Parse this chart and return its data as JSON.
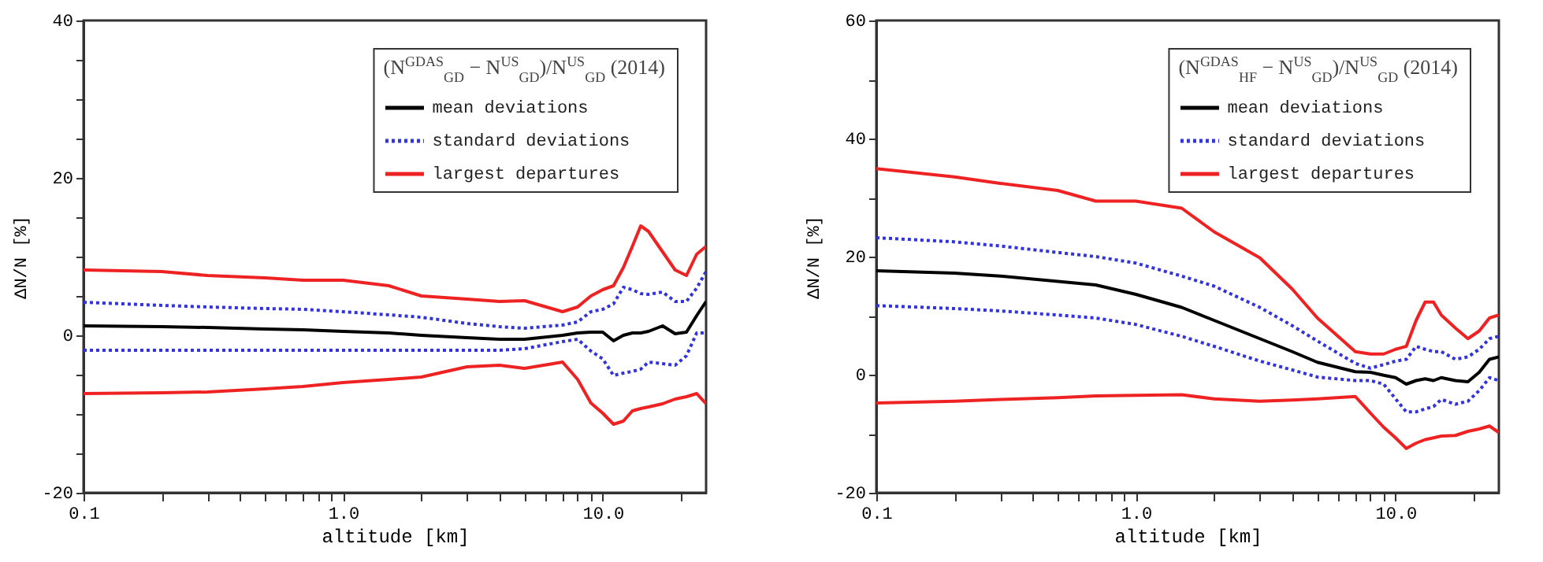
{
  "chart_data": [
    {
      "type": "line",
      "legend_title": "(N$^{GDAS}$$_{GD}$ − N$^{US}$$_{GD}$)/N$^{US}$$_{GD}$ (2014)",
      "xlabel": "altitude [km]",
      "ylabel": "ΔN/N [%]",
      "log": "x",
      "grid": false,
      "legend": "top right",
      "x": [
        0.1,
        0.2,
        0.3,
        0.5,
        0.7,
        1,
        1.5,
        2,
        3,
        4,
        5,
        7,
        8,
        9,
        10,
        11,
        12,
        13,
        14,
        15,
        17,
        19,
        21,
        23,
        25
      ],
      "xlim": [
        0.1,
        25
      ],
      "xticks": [
        {
          "value": 0.1,
          "label": "0.1"
        },
        {
          "value": 0.2,
          "label": null
        },
        {
          "value": 0.3,
          "label": null
        },
        {
          "value": 0.4,
          "label": null
        },
        {
          "value": 0.5,
          "label": null
        },
        {
          "value": 0.6,
          "label": null
        },
        {
          "value": 0.7,
          "label": null
        },
        {
          "value": 0.8,
          "label": null
        },
        {
          "value": 0.9,
          "label": null
        },
        {
          "value": 1,
          "label": "1.0"
        },
        {
          "value": 2,
          "label": null
        },
        {
          "value": 3,
          "label": null
        },
        {
          "value": 4,
          "label": null
        },
        {
          "value": 5,
          "label": null
        },
        {
          "value": 6,
          "label": null
        },
        {
          "value": 7,
          "label": null
        },
        {
          "value": 8,
          "label": null
        },
        {
          "value": 9,
          "label": null
        },
        {
          "value": 10,
          "label": "10.0"
        },
        {
          "value": 20,
          "label": null
        }
      ],
      "ylim": [
        -20,
        40
      ],
      "yticks": [
        -20,
        {
          "value": -15,
          "label": null
        },
        {
          "value": -10,
          "label": null
        },
        {
          "value": -5,
          "label": null
        },
        0,
        {
          "value": 5,
          "label": null
        },
        {
          "value": 10,
          "label": null
        },
        {
          "value": 15,
          "label": null
        },
        20,
        {
          "value": 25,
          "label": null
        },
        {
          "value": 30,
          "label": null
        },
        {
          "value": 35,
          "label": null
        },
        40
      ],
      "series": [
        {
          "name": "mean deviations",
          "color": "#000000",
          "line_style": "solid",
          "values": [
            1.2,
            1.1,
            1.0,
            0.8,
            0.7,
            0.5,
            0.3,
            0,
            -0.3,
            -0.5,
            -0.5,
            0,
            0.3,
            0.4,
            0.4,
            -0.7,
            0,
            0.3,
            0.3,
            0.5,
            1.2,
            0.2,
            0.4,
            2.5,
            4.3
          ]
        },
        {
          "name": "standard deviations",
          "color": "#3333dd",
          "line_style": "dotted",
          "values": [
            4.2,
            3.8,
            3.6,
            3.4,
            3.3,
            3.0,
            2.6,
            2.3,
            1.5,
            1.1,
            0.9,
            1.3,
            1.7,
            3.0,
            3.3,
            4.0,
            6.1,
            5.8,
            5.3,
            5.2,
            5.5,
            4.3,
            4.3,
            6.0,
            8.1
          ]
        },
        {
          "color": "#3333dd",
          "line_style": "dotted",
          "values": [
            -1.9,
            -1.9,
            -1.9,
            -1.9,
            -1.9,
            -1.9,
            -1.9,
            -1.9,
            -1.9,
            -1.9,
            -1.7,
            -0.8,
            -0.5,
            -2.0,
            -3.0,
            -5.1,
            -4.8,
            -4.6,
            -4.3,
            -3.4,
            -3.6,
            -3.8,
            -2.6,
            0.3,
            0.3
          ]
        },
        {
          "name": "largest departures",
          "color": "#ee2222",
          "line_style": "solid",
          "values": [
            8.3,
            8.1,
            7.6,
            7.3,
            7.0,
            7.0,
            6.3,
            5.0,
            4.6,
            4.3,
            4.4,
            3.0,
            3.6,
            5.0,
            5.8,
            6.3,
            8.6,
            11.3,
            13.9,
            13.2,
            10.6,
            8.3,
            7.6,
            10.3,
            11.3
          ]
        },
        {
          "color": "#ee2222",
          "line_style": "solid",
          "values": [
            -7.4,
            -7.3,
            -7.2,
            -6.8,
            -6.5,
            -6.0,
            -5.6,
            -5.3,
            -4.0,
            -3.8,
            -4.2,
            -3.4,
            -5.6,
            -8.6,
            -9.9,
            -11.3,
            -10.9,
            -9.6,
            -9.3,
            -9.1,
            -8.7,
            -8.1,
            -7.8,
            -7.4,
            -8.7
          ]
        }
      ]
    },
    {
      "type": "line",
      "legend_title": "(N$^{GDAS}$$_{HF}$ − N$^{US}$$_{GD}$)/N$^{US}$$_{GD}$ (2014)",
      "xlabel": "altitude [km]",
      "ylabel": "ΔN/N [%]",
      "log": "x",
      "grid": false,
      "legend": "top right",
      "x": [
        0.1,
        0.2,
        0.3,
        0.5,
        0.7,
        1,
        1.5,
        2,
        3,
        4,
        5,
        7,
        8,
        9,
        10,
        11,
        12,
        13,
        14,
        15,
        17,
        19,
        21,
        23,
        25
      ],
      "xlim": [
        0.1,
        25
      ],
      "xticks": [
        {
          "value": 0.1,
          "label": "0.1"
        },
        {
          "value": 0.2,
          "label": null
        },
        {
          "value": 0.3,
          "label": null
        },
        {
          "value": 0.4,
          "label": null
        },
        {
          "value": 0.5,
          "label": null
        },
        {
          "value": 0.6,
          "label": null
        },
        {
          "value": 0.7,
          "label": null
        },
        {
          "value": 0.8,
          "label": null
        },
        {
          "value": 0.9,
          "label": null
        },
        {
          "value": 1,
          "label": "1.0"
        },
        {
          "value": 2,
          "label": null
        },
        {
          "value": 3,
          "label": null
        },
        {
          "value": 4,
          "label": null
        },
        {
          "value": 5,
          "label": null
        },
        {
          "value": 6,
          "label": null
        },
        {
          "value": 7,
          "label": null
        },
        {
          "value": 8,
          "label": null
        },
        {
          "value": 9,
          "label": null
        },
        {
          "value": 10,
          "label": "10.0"
        },
        {
          "value": 20,
          "label": null
        }
      ],
      "ylim": [
        -20,
        60
      ],
      "yticks": [
        -20,
        {
          "value": -10,
          "label": null
        },
        0,
        {
          "value": 10,
          "label": null
        },
        20,
        {
          "value": 30,
          "label": null
        },
        40,
        {
          "value": 50,
          "label": null
        },
        60
      ],
      "series": [
        {
          "name": "mean deviations",
          "color": "#000000",
          "line_style": "solid",
          "values": [
            17.6,
            17.2,
            16.7,
            15.8,
            15.2,
            13.6,
            11.4,
            9.2,
            6.1,
            3.9,
            2.1,
            0.5,
            0.4,
            -0.1,
            -0.5,
            -1.6,
            -1.0,
            -0.7,
            -1.0,
            -0.5,
            -1.0,
            -1.2,
            0.4,
            2.6,
            3.0
          ]
        },
        {
          "name": "standard deviations",
          "color": "#3333dd",
          "line_style": "dotted",
          "values": [
            23.2,
            22.5,
            21.8,
            20.7,
            20.0,
            18.9,
            16.7,
            15.0,
            11.4,
            8.3,
            5.7,
            1.9,
            1.1,
            1.7,
            2.3,
            2.6,
            4.8,
            4.3,
            3.9,
            3.9,
            2.6,
            3.0,
            4.3,
            6.1,
            6.5
          ]
        },
        {
          "color": "#3333dd",
          "line_style": "dotted",
          "values": [
            11.7,
            11.2,
            10.8,
            10.1,
            9.6,
            8.5,
            6.5,
            4.8,
            2.3,
            0.8,
            -0.4,
            -1.0,
            -1.0,
            -1.6,
            -4.1,
            -6.3,
            -6.3,
            -5.8,
            -5.4,
            -4.2,
            -5.0,
            -4.5,
            -2.7,
            -0.5,
            -1.0
          ]
        },
        {
          "name": "largest departures",
          "color": "#ee2222",
          "line_style": "solid",
          "values": [
            34.9,
            33.5,
            32.4,
            31.2,
            29.4,
            29.4,
            28.2,
            24.2,
            19.8,
            14.5,
            9.6,
            3.9,
            3.5,
            3.5,
            4.3,
            4.8,
            9.2,
            12.3,
            12.3,
            10.1,
            7.9,
            6.1,
            7.4,
            9.6,
            10.1
          ]
        },
        {
          "color": "#ee2222",
          "line_style": "solid",
          "values": [
            -4.8,
            -4.5,
            -4.2,
            -3.9,
            -3.6,
            -3.5,
            -3.4,
            -4.1,
            -4.5,
            -4.3,
            -4.1,
            -3.7,
            -6.5,
            -8.9,
            -10.7,
            -12.5,
            -11.6,
            -11.0,
            -10.7,
            -10.4,
            -10.3,
            -9.6,
            -9.2,
            -8.7,
            -9.8
          ]
        }
      ]
    }
  ]
}
